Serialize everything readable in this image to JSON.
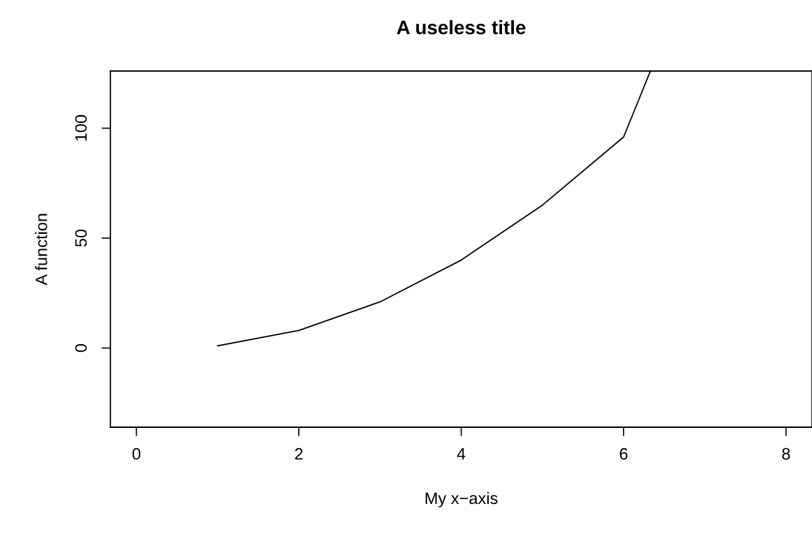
{
  "chart_data": {
    "type": "line",
    "title": "A useless title",
    "xlabel": "My x−axis",
    "ylabel": "A function",
    "x": [
      1,
      2,
      3,
      4,
      5,
      6,
      6.33
    ],
    "series": [
      {
        "color": "#000000",
        "values": [
          1,
          8,
          21,
          40,
          65,
          96,
          126
        ]
      }
    ],
    "xlim": [
      -0.32,
      8.32
    ],
    "ylim": [
      -36,
      126
    ],
    "xticks": [
      0,
      2,
      4,
      6,
      8
    ],
    "yticks": [
      0,
      50,
      100
    ],
    "grid": false,
    "legend": false,
    "marker": "none",
    "line_style": "solid"
  }
}
